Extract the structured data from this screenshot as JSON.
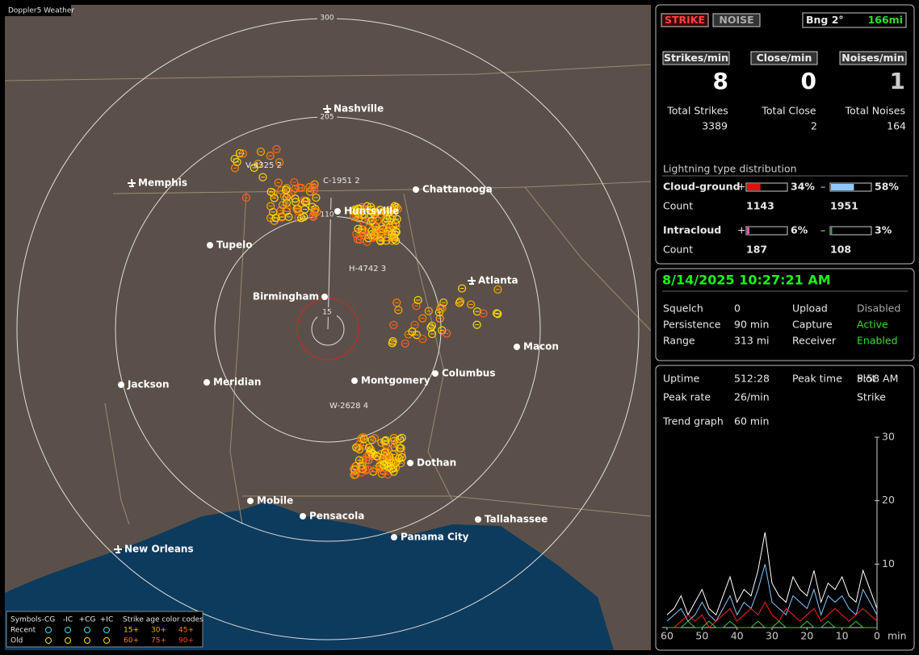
{
  "map": {
    "title": "Doppler5 Weather",
    "rings": [
      300,
      205,
      110,
      15
    ],
    "cities": [
      "Nashville",
      "Memphis",
      "Chattanooga",
      "Huntsville",
      "Tupelo",
      "Birmingham",
      "Atlanta",
      "Macon",
      "Jackson",
      "Meridian",
      "Montgomery",
      "Columbus",
      "Dothan",
      "Mobile",
      "Pensacola",
      "Tallahassee",
      "Panama City",
      "New Orleans"
    ],
    "storms": [
      "V-4325 2",
      "C-1951 2",
      "H-4742 3",
      "W-2628 4"
    ],
    "legend": {
      "symbols_title": "Symbols",
      "types": [
        "-CG",
        "-IC",
        "+CG",
        "+IC"
      ],
      "age_title": "Strike age color codes",
      "rows": [
        "Recent",
        "Old"
      ],
      "ages": [
        "15+",
        "30+",
        "45+",
        "60+",
        "75+",
        "90+"
      ]
    }
  },
  "status": {
    "mode_buttons": [
      "STRIKE",
      "NOISE"
    ],
    "bearing": "Bng 2°",
    "distance": "166mi",
    "rates": [
      {
        "label": "Strikes/min",
        "value": 8
      },
      {
        "label": "Close/min",
        "value": 0
      },
      {
        "label": "Noises/min",
        "value": 1
      }
    ],
    "totals": [
      {
        "label": "Total Strikes",
        "value": 3389
      },
      {
        "label": "Total Close",
        "value": 2
      },
      {
        "label": "Total Noises",
        "value": 164
      }
    ],
    "distribution": {
      "title": "Lightning type distribution",
      "plus": "+",
      "minus": "–",
      "count_label": "Count",
      "rows": [
        {
          "name": "Cloud-ground",
          "pos": {
            "value": 34,
            "label": "34%"
          },
          "neg": {
            "value": 58,
            "label": "58%"
          },
          "pos_count": 1143,
          "neg_count": 1951
        },
        {
          "name": "Intracloud",
          "pos": {
            "value": 6,
            "label": "6%"
          },
          "neg": {
            "value": 3,
            "label": "3%"
          },
          "pos_count": 187,
          "neg_count": 108
        }
      ]
    }
  },
  "settings": {
    "datetime": "8/14/2025 10:27:21 AM",
    "items": [
      [
        "Squelch",
        0,
        "Upload",
        "Disabled"
      ],
      [
        "Persistence",
        "90 min",
        "Capture",
        "Active"
      ],
      [
        "Range",
        "313 mi",
        "Receiver",
        "Enabled"
      ]
    ]
  },
  "trend": {
    "items": [
      [
        "Uptime",
        "512:28",
        "Peak time",
        "5:58 AM",
        "Plot"
      ],
      [
        "Peak rate",
        "26/min",
        "",
        "",
        "Strike"
      ]
    ],
    "graph_label": "Trend graph",
    "graph_span": "60 min",
    "x_unit": "min",
    "xlim": [
      60,
      0
    ],
    "xticks": [
      60,
      50,
      40,
      30,
      20,
      10,
      0
    ],
    "ylim": [
      0,
      30
    ],
    "yticks": [
      10,
      20,
      30
    ],
    "x": [
      60,
      58,
      56,
      54,
      52,
      50,
      48,
      46,
      44,
      42,
      40,
      38,
      36,
      34,
      32,
      30,
      28,
      26,
      24,
      22,
      20,
      18,
      16,
      14,
      12,
      10,
      8,
      6,
      4,
      2,
      0
    ],
    "series": [
      {
        "color": "#ffffff",
        "values": [
          2,
          3,
          5,
          2,
          4,
          6,
          3,
          2,
          5,
          8,
          4,
          6,
          5,
          9,
          15,
          7,
          5,
          4,
          8,
          6,
          5,
          9,
          4,
          7,
          6,
          8,
          5,
          4,
          9,
          6,
          3
        ]
      },
      {
        "color": "#80c8ff",
        "values": [
          1,
          2,
          3,
          1,
          2,
          4,
          2,
          1,
          3,
          5,
          2,
          4,
          3,
          6,
          10,
          4,
          3,
          2,
          5,
          4,
          3,
          6,
          2,
          5,
          4,
          5,
          3,
          2,
          6,
          4,
          2
        ]
      },
      {
        "color": "#ff2020",
        "values": [
          0,
          0,
          1,
          2,
          1,
          2,
          0,
          1,
          2,
          3,
          1,
          2,
          3,
          2,
          4,
          2,
          1,
          3,
          2,
          1,
          2,
          3,
          1,
          2,
          3,
          2,
          1,
          2,
          3,
          2,
          1
        ]
      },
      {
        "color": "#30d030",
        "values": [
          0,
          0,
          0,
          1,
          0,
          0,
          1,
          0,
          0,
          1,
          0,
          0,
          0,
          1,
          0,
          0,
          1,
          0,
          0,
          0,
          1,
          0,
          0,
          1,
          0,
          0,
          0,
          1,
          0,
          0,
          0
        ]
      }
    ]
  }
}
